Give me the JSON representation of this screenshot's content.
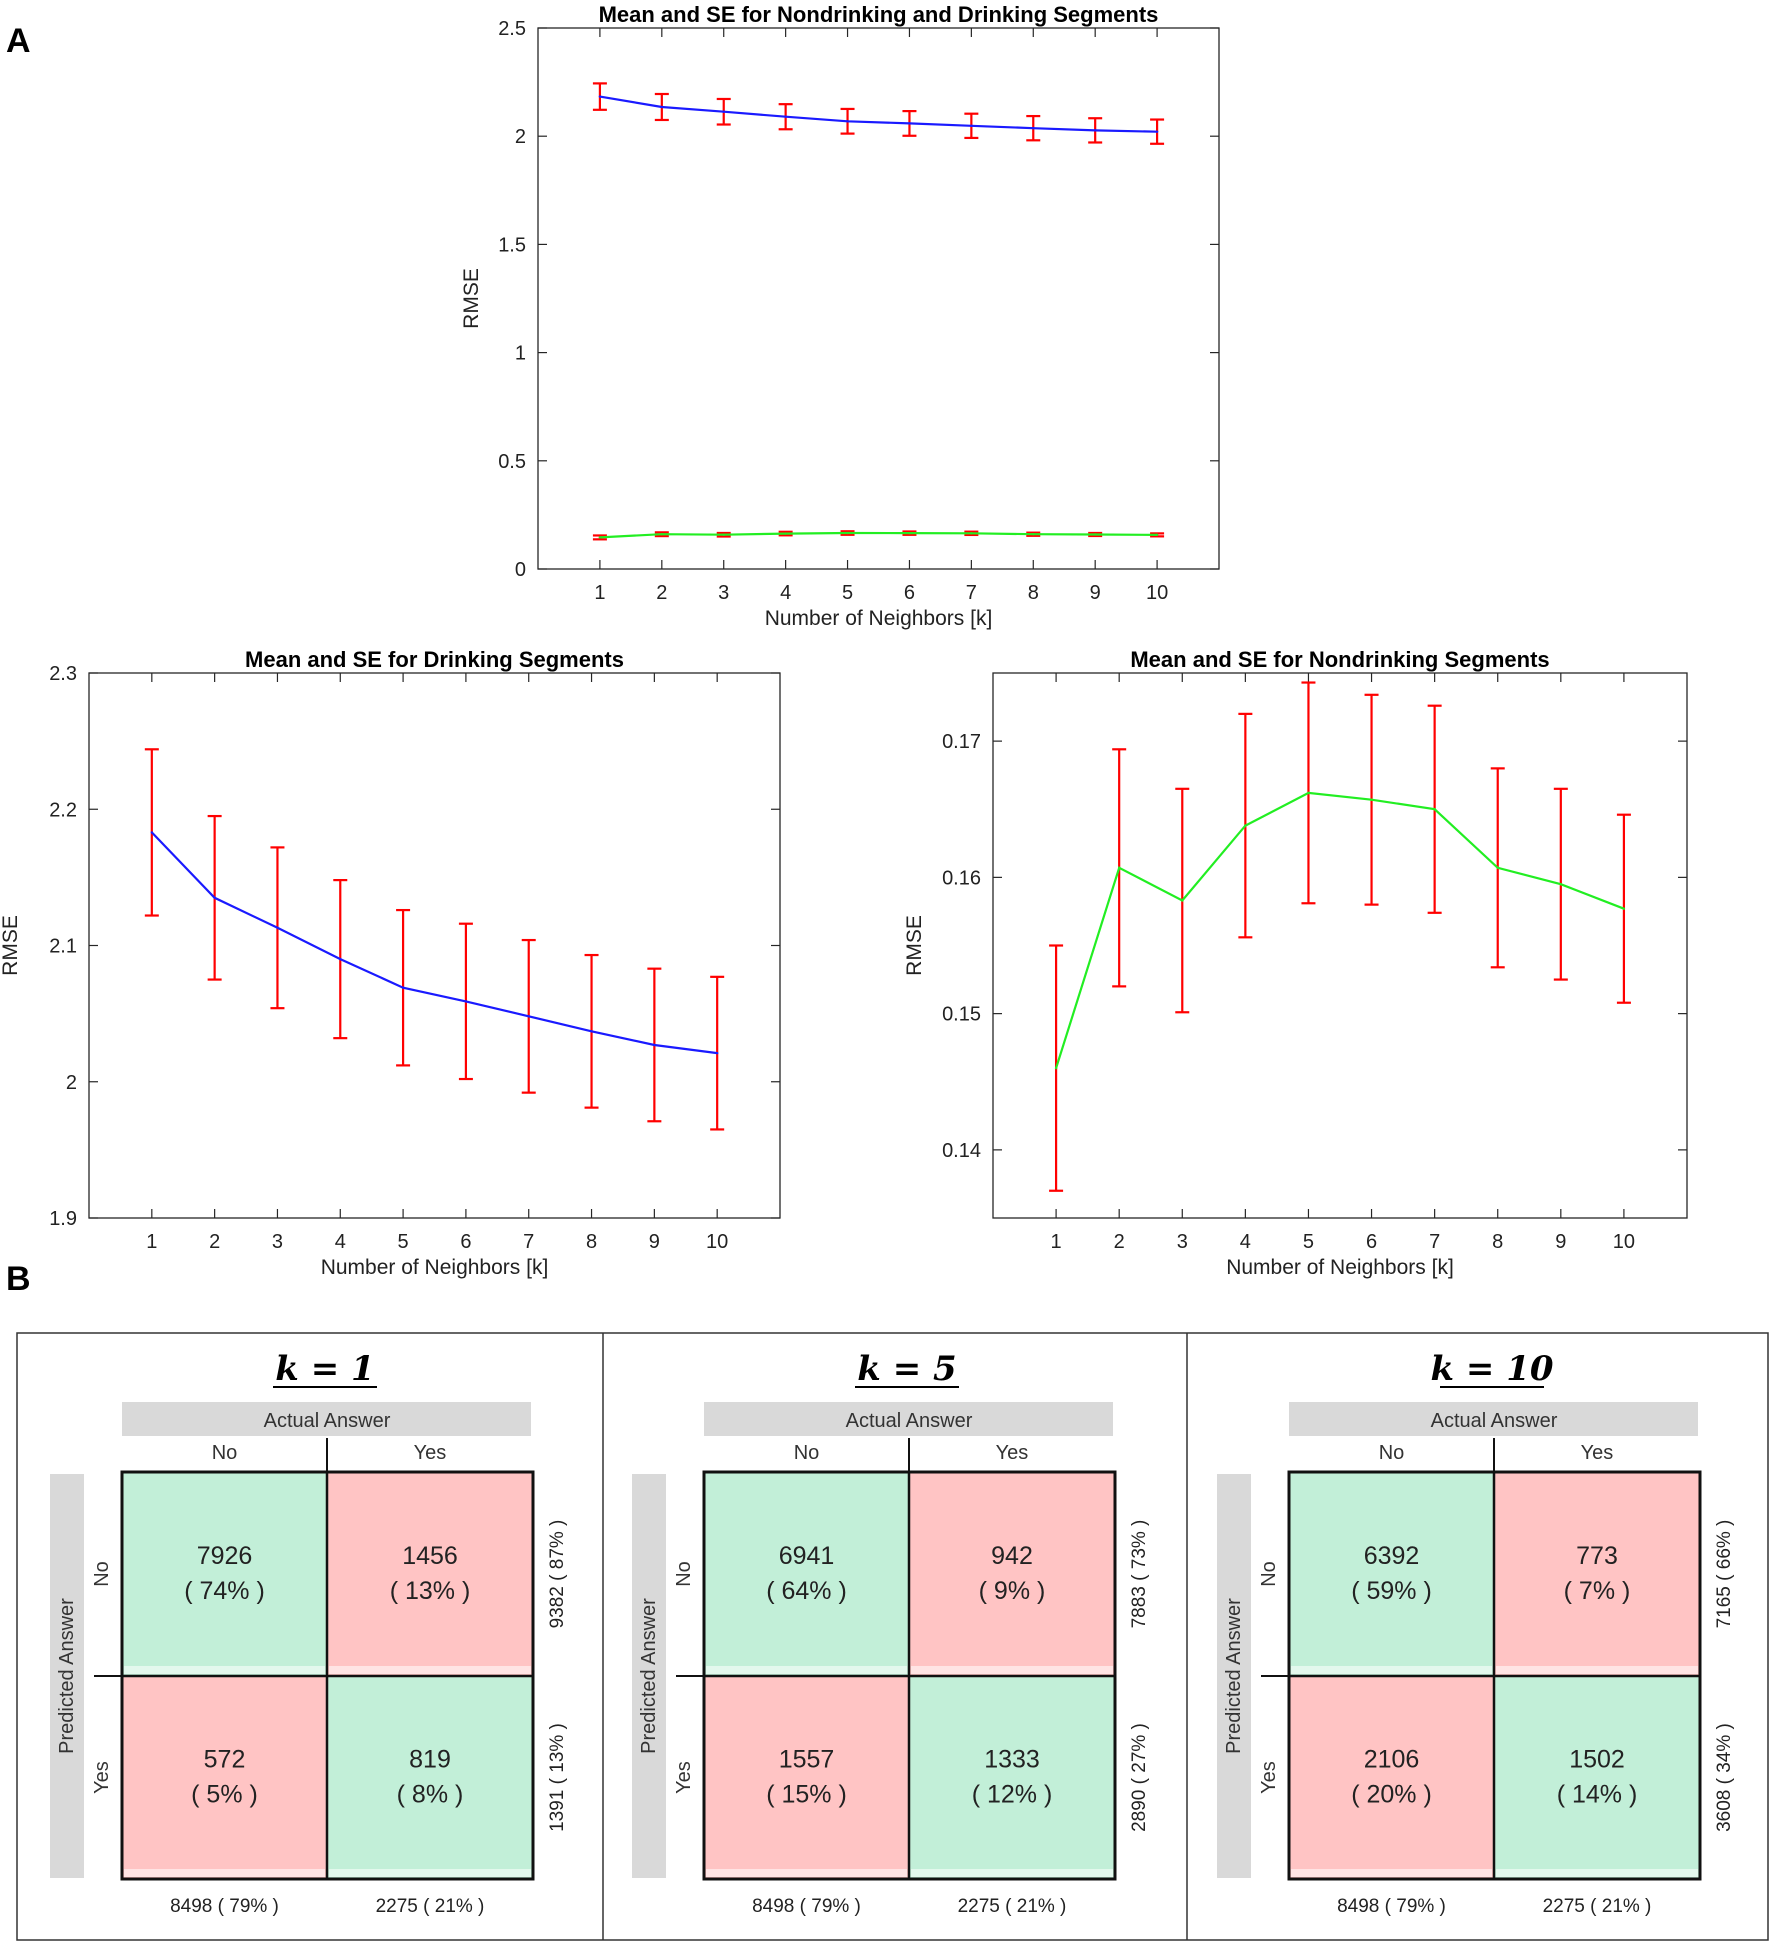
{
  "panels": {
    "a": "A",
    "b": "B"
  },
  "chart_data": [
    {
      "type": "line",
      "title": "Mean and SE for Nondrinking and Drinking Segments",
      "xlabel": "Number of Neighbors [k]",
      "ylabel": "RMSE",
      "x": [
        1,
        2,
        3,
        4,
        5,
        6,
        7,
        8,
        9,
        10
      ],
      "xlim": [
        0,
        11
      ],
      "ylim": [
        0,
        2.5
      ],
      "yticks": [
        0,
        0.5,
        1,
        1.5,
        2,
        2.5
      ],
      "ytick_labels": [
        "0",
        "0.5",
        "1",
        "1.5",
        "2",
        "2.5"
      ],
      "grid": false,
      "series": [
        {
          "color": "#1a1aff",
          "values": [
            2.183,
            2.135,
            2.113,
            2.09,
            2.069,
            2.059,
            2.048,
            2.037,
            2.027,
            2.021
          ],
          "se": [
            0.061,
            0.06,
            0.059,
            0.058,
            0.057,
            0.057,
            0.056,
            0.056,
            0.056,
            0.056
          ]
        },
        {
          "color": "#22ee22",
          "values": [
            0.146,
            0.1607,
            0.1583,
            0.1638,
            0.1662,
            0.1657,
            0.165,
            0.1607,
            0.1595,
            0.1577
          ],
          "se": [
            0.009,
            0.0087,
            0.0082,
            0.0082,
            0.0081,
            0.0077,
            0.0076,
            0.0073,
            0.007,
            0.0069
          ]
        }
      ],
      "errorbar_color": "#ff0000"
    },
    {
      "type": "line",
      "title": "Mean and SE for Drinking Segments",
      "xlabel": "Number of Neighbors [k]",
      "ylabel": "RMSE",
      "x": [
        1,
        2,
        3,
        4,
        5,
        6,
        7,
        8,
        9,
        10
      ],
      "xlim": [
        0,
        11
      ],
      "ylim": [
        1.9,
        2.3
      ],
      "yticks": [
        1.9,
        2,
        2.1,
        2.2,
        2.3
      ],
      "ytick_labels": [
        "1.9",
        "2",
        "2.1",
        "2.2",
        "2.3"
      ],
      "grid": false,
      "series": [
        {
          "color": "#1a1aff",
          "values": [
            2.183,
            2.135,
            2.113,
            2.09,
            2.069,
            2.059,
            2.048,
            2.037,
            2.027,
            2.021
          ],
          "se": [
            0.061,
            0.06,
            0.059,
            0.058,
            0.057,
            0.057,
            0.056,
            0.056,
            0.056,
            0.056
          ]
        }
      ],
      "errorbar_color": "#ff0000"
    },
    {
      "type": "line",
      "title": "Mean and SE for Nondrinking Segments",
      "xlabel": "Number of Neighbors [k]",
      "ylabel": "RMSE",
      "x": [
        1,
        2,
        3,
        4,
        5,
        6,
        7,
        8,
        9,
        10
      ],
      "xlim": [
        0,
        11
      ],
      "ylim": [
        0.135,
        0.175
      ],
      "yticks": [
        0.14,
        0.15,
        0.16,
        0.17
      ],
      "ytick_labels": [
        "0.14",
        "0.15",
        "0.16",
        "0.17"
      ],
      "grid": false,
      "series": [
        {
          "color": "#22ee22",
          "values": [
            0.146,
            0.1607,
            0.1583,
            0.1638,
            0.1662,
            0.1657,
            0.165,
            0.1607,
            0.1595,
            0.1577
          ],
          "se": [
            0.009,
            0.0087,
            0.0082,
            0.0082,
            0.0081,
            0.0077,
            0.0076,
            0.0073,
            0.007,
            0.0069
          ]
        }
      ],
      "errorbar_color": "#ff0000"
    },
    {
      "type": "table",
      "title": "k = 1",
      "column_header": "Actual Answer",
      "row_header": "Predicted Answer",
      "columns": [
        "No",
        "Yes"
      ],
      "rows": [
        "No",
        "Yes"
      ],
      "cells": [
        [
          "7926",
          "( 74% )",
          "1456",
          "( 13% )"
        ],
        [
          "572",
          "( 5% )",
          "819",
          "( 8% )"
        ]
      ],
      "cell_kind": [
        [
          "correct",
          "wrong"
        ],
        [
          "wrong",
          "correct"
        ]
      ],
      "row_totals": [
        "9382 ( 87% )",
        "1391 ( 13% )"
      ],
      "col_totals": [
        "8498 ( 79% )",
        "2275 ( 21% )"
      ]
    },
    {
      "type": "table",
      "title": "k = 5",
      "column_header": "Actual Answer",
      "row_header": "Predicted Answer",
      "columns": [
        "No",
        "Yes"
      ],
      "rows": [
        "No",
        "Yes"
      ],
      "cells": [
        [
          "6941",
          "( 64% )",
          "942",
          "( 9% )"
        ],
        [
          "1557",
          "( 15% )",
          "1333",
          "( 12% )"
        ]
      ],
      "cell_kind": [
        [
          "correct",
          "wrong"
        ],
        [
          "wrong",
          "correct"
        ]
      ],
      "row_totals": [
        "7883 ( 73% )",
        "2890 ( 27% )"
      ],
      "col_totals": [
        "8498 ( 79% )",
        "2275 ( 21% )"
      ]
    },
    {
      "type": "table",
      "title": "k = 10",
      "column_header": "Actual Answer",
      "row_header": "Predicted Answer",
      "columns": [
        "No",
        "Yes"
      ],
      "rows": [
        "No",
        "Yes"
      ],
      "cells": [
        [
          "6392",
          "( 59% )",
          "773",
          "( 7% )"
        ],
        [
          "2106",
          "( 20% )",
          "1502",
          "( 14% )"
        ]
      ],
      "cell_kind": [
        [
          "correct",
          "wrong"
        ],
        [
          "wrong",
          "correct"
        ]
      ],
      "row_totals": [
        "7165 ( 66% )",
        "3608 ( 34% )"
      ],
      "col_totals": [
        "8498 ( 79% )",
        "2275 ( 21% )"
      ]
    }
  ],
  "colors": {
    "correct_cell": "#c2efd8",
    "wrong_cell": "#ffc4c4",
    "header_bar": "#d9d9d9"
  }
}
